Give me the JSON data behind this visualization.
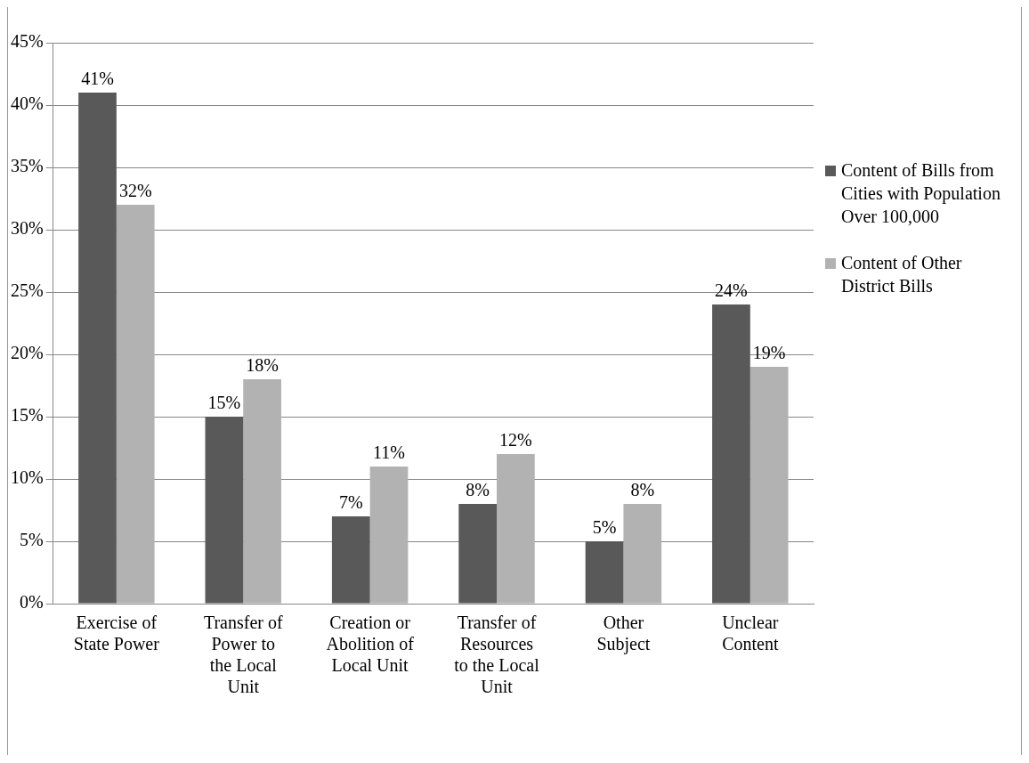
{
  "chart_data": {
    "type": "bar",
    "categories": [
      "Exercise of State Power",
      "Transfer of Power to the Local Unit",
      "Creation or Abolition of Local Unit",
      "Transfer of Resources to the Local Unit",
      "Other Subject",
      "Unclear Content"
    ],
    "series": [
      {
        "name": "Content of Bills from Cities with Population Over 100,000",
        "color": "#595959",
        "values": [
          41,
          15,
          7,
          8,
          5,
          24
        ],
        "value_labels": [
          "41%",
          "15%",
          "7%",
          "8%",
          "5%",
          "24%"
        ]
      },
      {
        "name": "Content of Other District Bills",
        "color": "#b2b2b2",
        "values": [
          32,
          18,
          11,
          12,
          8,
          19
        ],
        "value_labels": [
          "32%",
          "18%",
          "11%",
          "12%",
          "8%",
          "19%"
        ]
      }
    ],
    "ylim": [
      0,
      45
    ],
    "yticks": [
      {
        "value": 0,
        "label": "0%"
      },
      {
        "value": 5,
        "label": "5%"
      },
      {
        "value": 10,
        "label": "10%"
      },
      {
        "value": 15,
        "label": "15%"
      },
      {
        "value": 20,
        "label": "20%"
      },
      {
        "value": 25,
        "label": "25%"
      },
      {
        "value": 30,
        "label": "30%"
      },
      {
        "value": 35,
        "label": "35%"
      },
      {
        "value": 40,
        "label": "40%"
      },
      {
        "value": 45,
        "label": "45%"
      }
    ],
    "grid": "y",
    "legend": "right"
  }
}
